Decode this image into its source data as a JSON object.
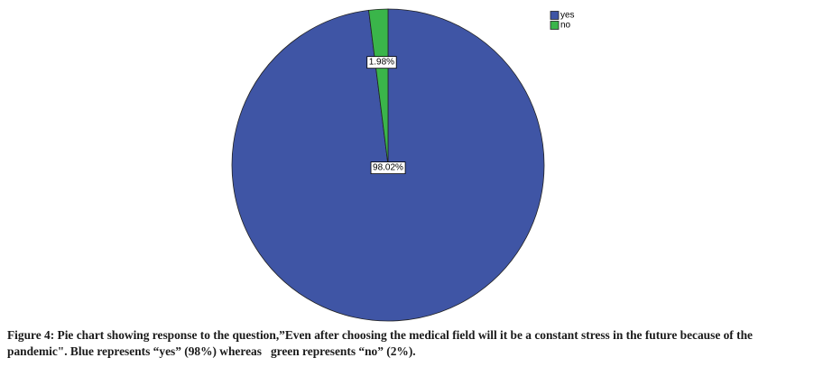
{
  "chart_data": {
    "type": "pie",
    "categories": [
      "yes",
      "no"
    ],
    "values": [
      98.02,
      1.98
    ],
    "value_labels": [
      "98.02%",
      "1.98%"
    ],
    "colors": [
      "#3f55a5",
      "#3ab54a"
    ],
    "legend": "top-right"
  },
  "caption": "Figure 4: Pie chart showing response to the question,”Even after choosing the medical field will it be a constant stress in the future because of the pandemic\". Blue represents “yes” (98%) whereas   green represents “no” (2%)."
}
